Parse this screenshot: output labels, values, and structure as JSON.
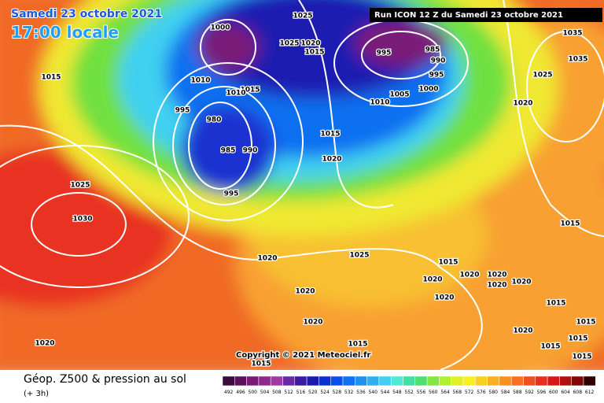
{
  "header": {
    "title": "Samedi 23 octobre 2021",
    "time": "17:00 locale",
    "run": "Run ICON 12 Z du Samedi 23 octobre 2021"
  },
  "copyright": "Copyright © 2021 Meteociel.fr",
  "footer": {
    "title": "Géop. Z500 & pression au sol",
    "lead": "(+ 3h)"
  },
  "isobar_labels": [
    1000,
    1025,
    1020,
    1015,
    1025,
    995,
    985,
    990,
    995,
    1000,
    1005,
    1010,
    1015,
    1010,
    1015,
    1010,
    995,
    980,
    985,
    990,
    995,
    1015,
    1020,
    1025,
    1030,
    1020,
    1025,
    1020,
    1020,
    1025,
    1035,
    1035,
    1015,
    1020,
    1020,
    1015,
    1015,
    1015,
    1020,
    1020,
    1020,
    1020,
    1020,
    1020,
    1015,
    1020,
    1015,
    1015,
    1015,
    1015
  ],
  "scale": {
    "ticks": [
      492,
      496,
      500,
      504,
      508,
      512,
      516,
      520,
      524,
      528,
      532,
      536,
      540,
      544,
      548,
      552,
      556,
      560,
      564,
      568,
      572,
      576,
      580,
      584,
      588,
      592,
      596,
      600,
      604,
      608,
      612
    ],
    "colors": [
      "#3b0a3b",
      "#5a1058",
      "#7a1a78",
      "#8e2a8c",
      "#a03aa0",
      "#6a2aa8",
      "#3a1aa0",
      "#1a1ab0",
      "#0a30d0",
      "#0a50e8",
      "#1070f0",
      "#2090f0",
      "#30b0f0",
      "#40d0f0",
      "#50e8d8",
      "#40e0a0",
      "#50e070",
      "#80e840",
      "#b0f030",
      "#e0f020",
      "#f8f020",
      "#f8d020",
      "#f8b020",
      "#f89020",
      "#f87020",
      "#f05020",
      "#e83020",
      "#d81818",
      "#b01010",
      "#800808",
      "#300000"
    ]
  }
}
